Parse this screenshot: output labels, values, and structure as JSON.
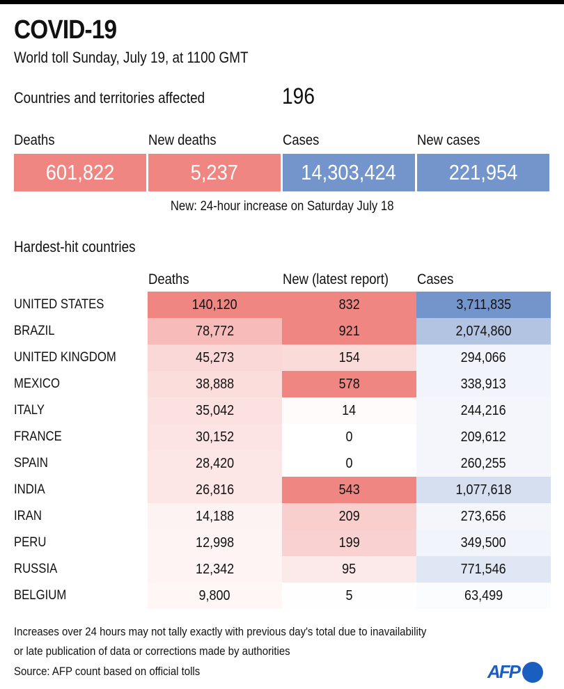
{
  "header": {
    "title": "COVID-19",
    "subtitle": "World toll Sunday, July 19, at 1100 GMT",
    "countries_label": "Countries and territories affected",
    "countries_value": "196"
  },
  "colors": {
    "deaths": "#f08682",
    "cases": "#7494cc",
    "text_dark": "#111111"
  },
  "summary": {
    "items": [
      {
        "label": "Deaths",
        "value": "601,822",
        "kind": "deaths"
      },
      {
        "label": "New deaths",
        "value": "5,237",
        "kind": "deaths"
      },
      {
        "label": "Cases",
        "value": "14,303,424",
        "kind": "cases"
      },
      {
        "label": "New cases",
        "value": "221,954",
        "kind": "cases"
      }
    ],
    "note": "New: 24-hour increase on Saturday July 18"
  },
  "chart_data": {
    "type": "table",
    "title": "Hardest-hit countries",
    "columns": [
      "Deaths",
      "New (latest report)",
      "Cases"
    ],
    "rows": [
      {
        "country": "UNITED STATES",
        "deaths": "140,120",
        "new": "832",
        "cases": "3,711,835",
        "shade": [
          1.0,
          1.0,
          1.0
        ]
      },
      {
        "country": "BRAZIL",
        "deaths": "78,772",
        "new": "921",
        "cases": "2,074,860",
        "shade": [
          0.55,
          1.0,
          0.55
        ]
      },
      {
        "country": "UNITED KINGDOM",
        "deaths": "45,273",
        "new": "154",
        "cases": "294,066",
        "shade": [
          0.32,
          0.3,
          0.1
        ]
      },
      {
        "country": "MEXICO",
        "deaths": "38,888",
        "new": "578",
        "cases": "338,913",
        "shade": [
          0.28,
          1.0,
          0.1
        ]
      },
      {
        "country": "ITALY",
        "deaths": "35,042",
        "new": "14",
        "cases": "244,216",
        "shade": [
          0.25,
          0.03,
          0.08
        ]
      },
      {
        "country": "FRANCE",
        "deaths": "30,152",
        "new": "0",
        "cases": "209,612",
        "shade": [
          0.22,
          0.0,
          0.08
        ]
      },
      {
        "country": "SPAIN",
        "deaths": "28,420",
        "new": "0",
        "cases": "260,255",
        "shade": [
          0.2,
          0.0,
          0.08
        ]
      },
      {
        "country": "INDIA",
        "deaths": "26,816",
        "new": "543",
        "cases": "1,077,618",
        "shade": [
          0.2,
          1.0,
          0.3
        ]
      },
      {
        "country": "IRAN",
        "deaths": "14,188",
        "new": "209",
        "cases": "273,656",
        "shade": [
          0.1,
          0.4,
          0.08
        ]
      },
      {
        "country": "PERU",
        "deaths": "12,998",
        "new": "199",
        "cases": "349,500",
        "shade": [
          0.09,
          0.38,
          0.1
        ]
      },
      {
        "country": "RUSSIA",
        "deaths": "12,342",
        "new": "95",
        "cases": "771,546",
        "shade": [
          0.09,
          0.18,
          0.22
        ]
      },
      {
        "country": "BELGIUM",
        "deaths": "9,800",
        "new": "5",
        "cases": "63,499",
        "shade": [
          0.07,
          0.01,
          0.03
        ]
      }
    ]
  },
  "footer": {
    "line1": "Increases over 24 hours may not tally exactly with previous day's total due to inavailability",
    "line2": "or late publication of data or corrections made by authorities",
    "source": "Source: AFP count based on official tolls",
    "logo": "AFP"
  }
}
